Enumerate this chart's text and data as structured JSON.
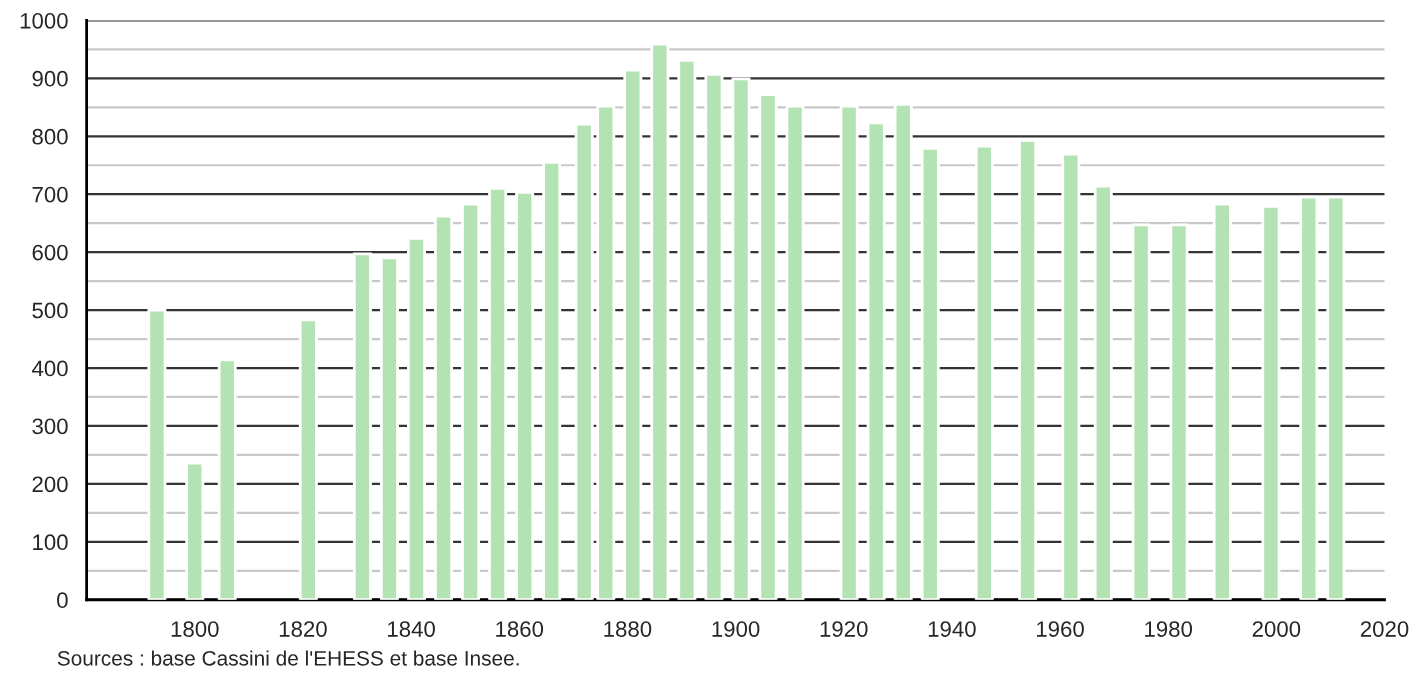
{
  "chart_data": {
    "type": "bar",
    "x": [
      1793,
      1800,
      1806,
      1821,
      1831,
      1836,
      1841,
      1846,
      1851,
      1856,
      1861,
      1866,
      1872,
      1876,
      1881,
      1886,
      1891,
      1896,
      1901,
      1906,
      1911,
      1921,
      1926,
      1931,
      1936,
      1946,
      1954,
      1962,
      1968,
      1975,
      1982,
      1990,
      1999,
      2006,
      2011
    ],
    "values": [
      500,
      236,
      414,
      483,
      597,
      590,
      624,
      662,
      683,
      710,
      703,
      755,
      821,
      852,
      914,
      959,
      931,
      907,
      899,
      872,
      852,
      852,
      823,
      855,
      779,
      783,
      793,
      769,
      714,
      647,
      647,
      683,
      679,
      695,
      695
    ],
    "color": "#b3e3b3",
    "xlim": [
      1780,
      2020
    ],
    "xticks": [
      {
        "value": 1780,
        "label": null
      },
      1800,
      1820,
      1840,
      1860,
      1880,
      1900,
      1920,
      1940,
      1960,
      1980,
      2000,
      2020
    ],
    "ylim": [
      0,
      1000
    ],
    "yticks": [
      0,
      {
        "value": 50,
        "label": null
      },
      100,
      {
        "value": 150,
        "label": null
      },
      200,
      {
        "value": 250,
        "label": null
      },
      300,
      {
        "value": 350,
        "label": null
      },
      400,
      {
        "value": 450,
        "label": null
      },
      500,
      {
        "value": 550,
        "label": null
      },
      600,
      {
        "value": 650,
        "label": null
      },
      700,
      {
        "value": 750,
        "label": null
      },
      800,
      {
        "value": 850,
        "label": null
      },
      900,
      {
        "value": 950,
        "label": null
      },
      1000
    ],
    "grid": "y",
    "annotations": [
      "Sources : base Cassini de l'EHESS et base Insee."
    ]
  }
}
